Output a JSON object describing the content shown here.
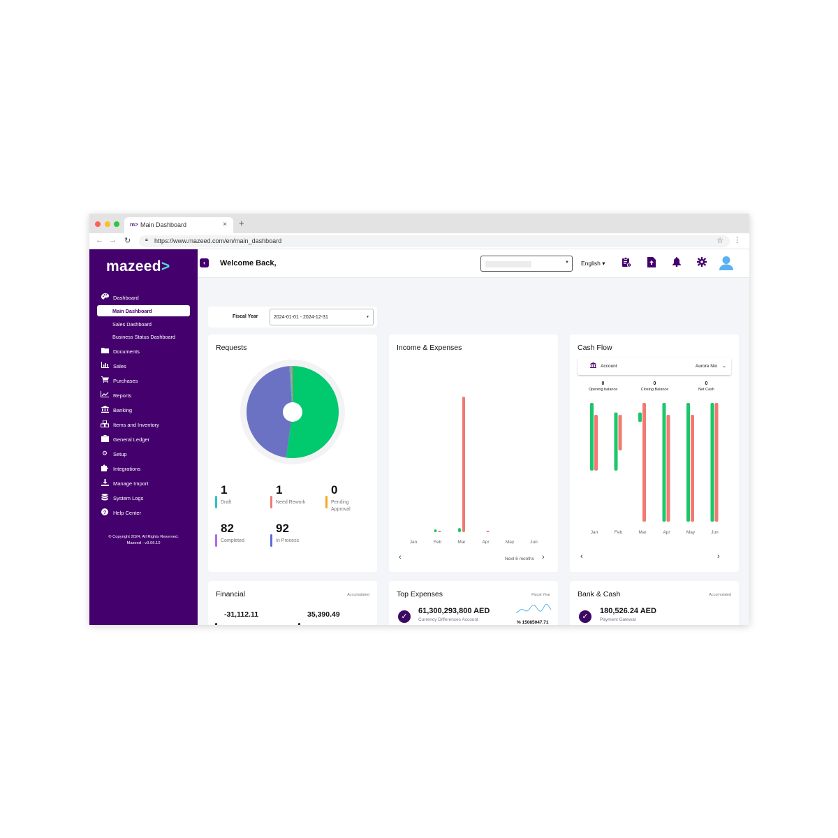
{
  "browser": {
    "tab_favicon": "m>",
    "tab_title": "Main Dashboard",
    "close": "×",
    "new_tab": "+",
    "url": "https://www.mazeed.com/en/main_dashboard"
  },
  "sidebar": {
    "logo": "mazeed",
    "items": [
      {
        "label": "Dashboard",
        "icon": "palette-icon"
      },
      {
        "label": "Documents",
        "icon": "folder-icon"
      },
      {
        "label": "Sales",
        "icon": "bar-chart-icon"
      },
      {
        "label": "Purchases",
        "icon": "cart-icon"
      },
      {
        "label": "Reports",
        "icon": "line-chart-icon"
      },
      {
        "label": "Banking",
        "icon": "bank-icon"
      },
      {
        "label": "Items and Inventory",
        "icon": "boxes-icon"
      },
      {
        "label": "General Ledger",
        "icon": "briefcase-icon"
      },
      {
        "label": "Setup",
        "icon": "gear-icon"
      },
      {
        "label": "Integrations",
        "icon": "puzzle-icon"
      },
      {
        "label": "Manage Import",
        "icon": "download-icon"
      },
      {
        "label": "System Logs",
        "icon": "database-icon"
      },
      {
        "label": "Help Center",
        "icon": "help-icon"
      }
    ],
    "subitems": [
      "Main Dashboard",
      "Sales Dashboard",
      "Business Status Dashboard"
    ],
    "copyright_line1": "© Copyright 2024. All Rights Reserved.",
    "copyright_line2": "Mazeed - v3.06.10"
  },
  "header": {
    "welcome": "Welcome Back,",
    "language": "English ▾"
  },
  "fiscal": {
    "label": "Fiscal Year",
    "value": "2024-01-01 - 2024-12-31"
  },
  "requests": {
    "title": "Requests",
    "stats": [
      {
        "value": "1",
        "label": "Draft",
        "color": "#2ec4c4"
      },
      {
        "value": "1",
        "label": "Need Rework",
        "color": "#f07a72"
      },
      {
        "value": "0",
        "label": "Pending Approval",
        "color": "#f5a623"
      },
      {
        "value": "82",
        "label": "Completed",
        "color": "#b06ae6"
      },
      {
        "value": "92",
        "label": "In Process",
        "color": "#5b6bd8"
      }
    ]
  },
  "income_expenses": {
    "title": "Income & Expenses",
    "next_label": "Next 6 months"
  },
  "cash_flow": {
    "title": "Cash Flow",
    "account_label": "Account",
    "account_value": "Aurore Nio",
    "metrics": [
      {
        "value": "0",
        "label": "Opening balance"
      },
      {
        "value": "0",
        "label": "Closing Balance"
      },
      {
        "value": "0",
        "label": "Net Cash"
      }
    ]
  },
  "financial": {
    "title": "Financial",
    "tag": "Accumulated",
    "value1": "-31,112.11",
    "value2": "35,390.49"
  },
  "top_expenses": {
    "title": "Top Expenses",
    "tag": "Fiscal Year",
    "amount": "61,300,293,800 AED",
    "account": "Currency Differences Account",
    "percent": "% 15085047.71"
  },
  "bank_cash": {
    "title": "Bank & Cash",
    "tag": "Accumulated",
    "amount": "180,526.24 AED",
    "account": "Payment Gatewat"
  },
  "chart_data": [
    {
      "type": "pie",
      "title": "Requests",
      "categories": [
        "In Process",
        "Completed",
        "Draft",
        "Need Rework",
        "Pending Approval"
      ],
      "values": [
        92,
        82,
        1,
        1,
        0
      ],
      "colors": [
        "#00c96e",
        "#6b72c4",
        "#2ec4c4",
        "#f07a72",
        "#f5a623"
      ]
    },
    {
      "type": "bar",
      "title": "Income & Expenses",
      "categories": [
        "Jan",
        "Feb",
        "Mar",
        "Apr",
        "May",
        "Jun"
      ],
      "series": [
        {
          "values": [
            0,
            0.02,
            0.03,
            0,
            0,
            0
          ],
          "color": "#1dc66a"
        },
        {
          "values": [
            0,
            0.005,
            1.0,
            0.002,
            0,
            0
          ],
          "color": "#f07a72"
        }
      ],
      "ylim": [
        0,
        1
      ]
    },
    {
      "type": "bar",
      "title": "Cash Flow",
      "categories": [
        "Jan",
        "Feb",
        "Mar",
        "Apr",
        "May",
        "Jun"
      ],
      "series": [
        {
          "values": [
            [
              0,
              0.57
            ],
            [
              0.08,
              0.57
            ],
            [
              0.08,
              0.16
            ],
            [
              0,
              1.0
            ],
            [
              0,
              1.0
            ],
            [
              0,
              1.0
            ]
          ],
          "color": "#1dc66a"
        },
        {
          "values": [
            [
              0.1,
              0.57
            ],
            [
              0.1,
              0.4
            ],
            [
              0,
              1.0
            ],
            [
              0.1,
              1.0
            ],
            [
              0.1,
              1.0
            ],
            [
              0,
              1.0
            ]
          ],
          "color": "#f07a72"
        }
      ],
      "ylim": [
        0,
        1
      ]
    }
  ]
}
